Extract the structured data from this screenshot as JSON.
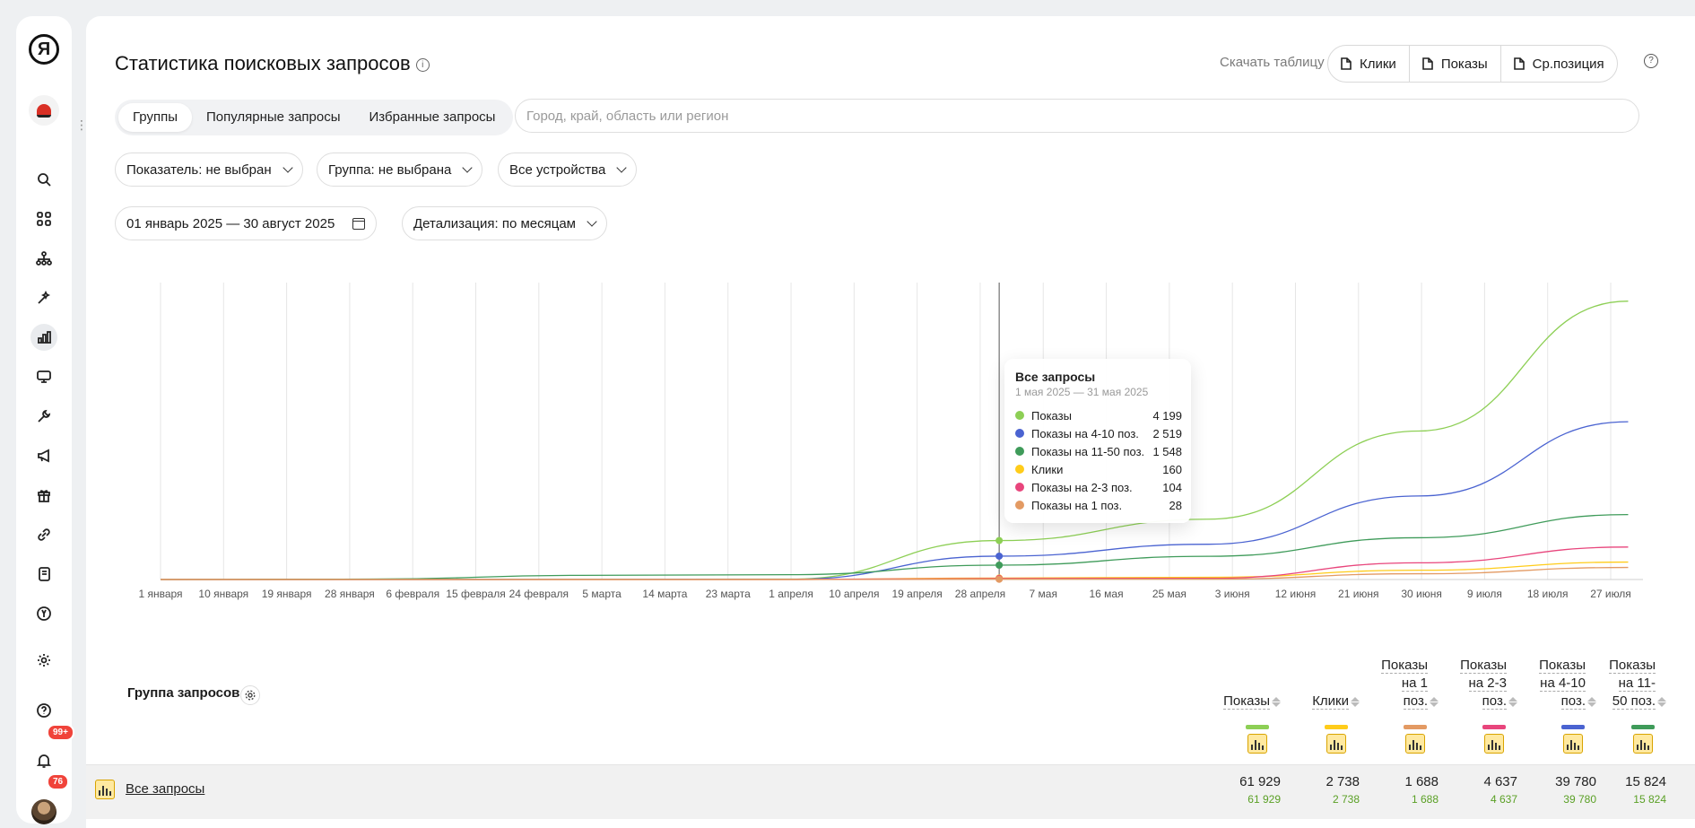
{
  "sidebar": {
    "logo_letter": "Я",
    "icons": [
      "search-icon",
      "apps-icon",
      "sitemap-icon",
      "magic-icon",
      "bar-chart-icon",
      "monitor-icon",
      "wrench-icon",
      "megaphone-icon",
      "gift-icon",
      "link-icon",
      "book-icon",
      "yandex-circle-icon",
      "gear-icon",
      "help-icon",
      "bell-icon"
    ],
    "notifications_badge": "99+",
    "avatar_badge": "76"
  },
  "header": {
    "title": "Статистика поисковых запросов",
    "download_label": "Скачать таблицу",
    "download_buttons": [
      "Клики",
      "Показы",
      "Ср.позиция"
    ]
  },
  "tabs": [
    {
      "label": "Группы",
      "active": true
    },
    {
      "label": "Популярные запросы",
      "active": false
    },
    {
      "label": "Избранные запросы",
      "active": false
    }
  ],
  "region_search": {
    "placeholder": "Город, край, область или регион",
    "value": ""
  },
  "filters": {
    "indicator": "Показатель: не выбран",
    "group": "Группа: не выбрана",
    "devices": "Все устройства",
    "date_range": "01 январь 2025 — 30 август 2025",
    "detail": "Детализация: по месяцам"
  },
  "chart_data": {
    "type": "line",
    "x_labels": [
      "1 января",
      "10 января",
      "19 января",
      "28 января",
      "6 февраля",
      "15 февраля",
      "24 февраля",
      "5 марта",
      "14 марта",
      "23 марта",
      "1 апреля",
      "10 апреля",
      "19 апреля",
      "28 апреля",
      "7 мая",
      "16 мая",
      "25 мая",
      "3 июня",
      "12 июня",
      "21 июня",
      "30 июня",
      "9 июля",
      "18 июля",
      "27 июля"
    ],
    "x_points": [
      "1 января",
      "1 февраля",
      "1 марта",
      "1 апреля",
      "1 мая",
      "1 июня",
      "1 июля",
      "1 августа"
    ],
    "series": [
      {
        "name": "Показы",
        "color": "#8dcf55",
        "values": [
          0,
          10,
          20,
          40,
          4199,
          6500,
          16000,
          30000
        ]
      },
      {
        "name": "Показы на 4-10 поз.",
        "color": "#4a63d1",
        "values": [
          0,
          5,
          10,
          25,
          2519,
          3800,
          9000,
          17000
        ]
      },
      {
        "name": "Показы на 11-50 поз.",
        "color": "#3f9b5a",
        "values": [
          0,
          40,
          450,
          520,
          1548,
          2500,
          4500,
          7000
        ]
      },
      {
        "name": "Клики",
        "color": "#ffcc1a",
        "values": [
          0,
          1,
          2,
          5,
          160,
          240,
          1000,
          1880
        ]
      },
      {
        "name": "Показы на 2-3 поз.",
        "color": "#e8457c",
        "values": [
          0,
          1,
          1,
          2,
          104,
          130,
          1800,
          3500
        ]
      },
      {
        "name": "Показы на 1 поз.",
        "color": "#e39a63",
        "values": [
          0,
          0,
          0,
          0,
          28,
          40,
          620,
          1300
        ]
      }
    ],
    "grid": true,
    "legend": "tooltip",
    "hover_index": 4
  },
  "tooltip": {
    "title": "Все запросы",
    "period": "1 мая 2025 — 31 мая 2025",
    "rows": [
      {
        "name": "Показы",
        "value": "4 199",
        "color": "#8dcf55"
      },
      {
        "name": "Показы на 4-10 поз.",
        "value": "2 519",
        "color": "#4a63d1"
      },
      {
        "name": "Показы на 11-50 поз.",
        "value": "1 548",
        "color": "#3f9b5a"
      },
      {
        "name": "Клики",
        "value": "160",
        "color": "#ffcc1a"
      },
      {
        "name": "Показы на 2-3 поз.",
        "value": "104",
        "color": "#e8457c"
      },
      {
        "name": "Показы на 1 поз.",
        "value": "28",
        "color": "#e39a63"
      }
    ]
  },
  "table": {
    "group_header": "Группа запросов",
    "columns": [
      {
        "lines": [
          "Показы"
        ],
        "color": "#8dcf55"
      },
      {
        "lines": [
          "Клики"
        ],
        "color": "#ffcc1a"
      },
      {
        "lines": [
          "Показы",
          "на 1",
          "поз."
        ],
        "color": "#e39a63"
      },
      {
        "lines": [
          "Показы",
          "на 2-3",
          "поз."
        ],
        "color": "#e8457c"
      },
      {
        "lines": [
          "Показы",
          "на 4-10",
          "поз."
        ],
        "color": "#4a63d1"
      },
      {
        "lines": [
          "Показы",
          "на 11-",
          "50 поз."
        ],
        "color": "#3f9b5a"
      }
    ],
    "rows": [
      {
        "label": "Все запросы",
        "values": [
          "61 929",
          "2 738",
          "1 688",
          "4 637",
          "39 780",
          "15 824"
        ],
        "sub_values": [
          "61 929",
          "2 738",
          "1 688",
          "4 637",
          "39 780",
          "15 824"
        ]
      }
    ]
  }
}
